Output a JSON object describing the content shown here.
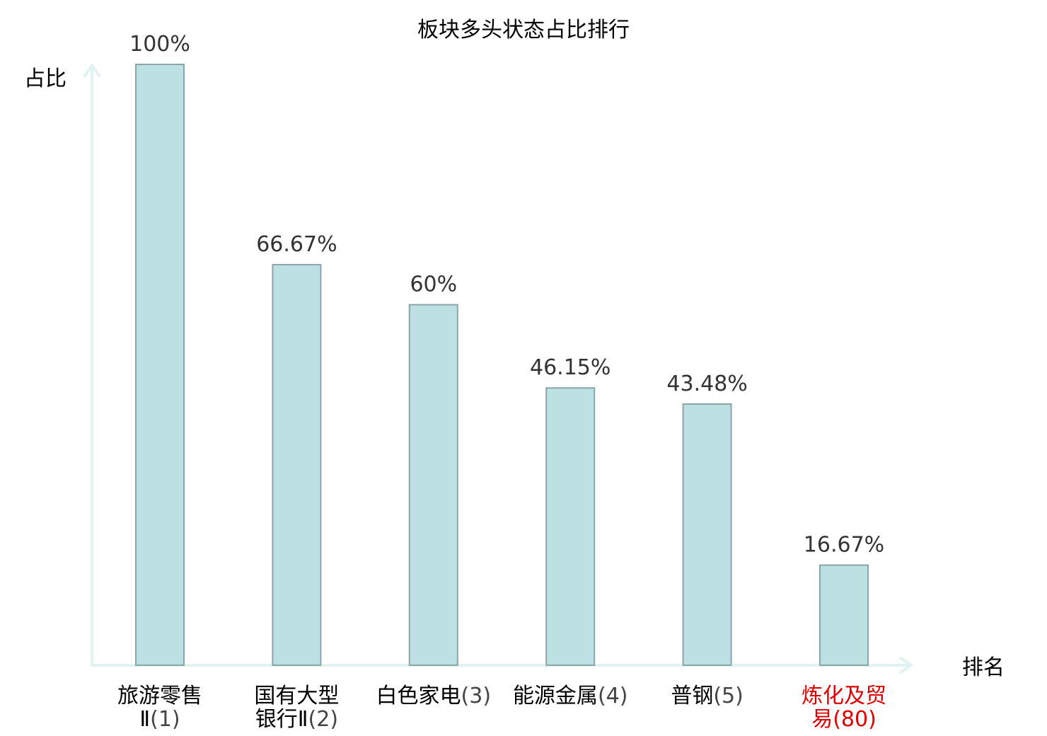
{
  "chart_data": {
    "type": "bar",
    "title": "板块多头状态占比排行",
    "ylabel": "占比",
    "xlabel": "排名",
    "ylim": [
      0,
      100
    ],
    "grid": false,
    "categories": [
      {
        "lines": [
          {
            "text": "旅游零售"
          },
          {
            "text": "Ⅱ",
            "paren": "(1)"
          }
        ]
      },
      {
        "lines": [
          {
            "text": "国有大型"
          },
          {
            "text": "银行Ⅱ",
            "paren": "(2)"
          }
        ]
      },
      {
        "lines": [
          {
            "text": "白色家电",
            "paren": "(3)"
          }
        ]
      },
      {
        "lines": [
          {
            "text": "能源金属",
            "paren": "(4)"
          }
        ]
      },
      {
        "lines": [
          {
            "text": "普钢",
            "paren": "(5)"
          }
        ]
      },
      {
        "lines": [
          {
            "text": "炼化及贸"
          },
          {
            "text": "易",
            "paren": "(80)"
          }
        ],
        "highlight": true
      }
    ],
    "values": [
      100,
      66.67,
      60,
      46.15,
      43.48,
      16.67
    ],
    "value_labels": [
      "100%",
      "66.67%",
      "60%",
      "46.15%",
      "43.48%",
      "16.67%"
    ],
    "colors": {
      "bar_fill": "#bde0e3",
      "bar_stroke": "#8aa6a9",
      "axis": "#e0f3f1",
      "highlight": "#e00000"
    }
  }
}
